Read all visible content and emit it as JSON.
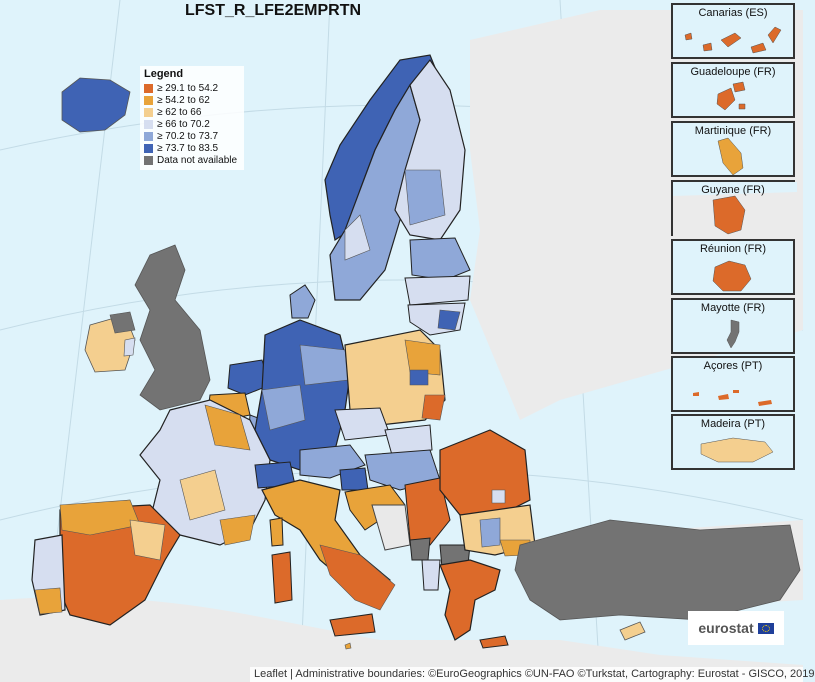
{
  "title": "LFST_R_LFE2EMPRTN",
  "legend": {
    "title": "Legend",
    "items": [
      {
        "label": "≥ 29.1 to 54.2",
        "color": "#dc6a2a"
      },
      {
        "label": "≥ 54.2 to 62",
        "color": "#e8a33a"
      },
      {
        "label": "≥ 62 to 66",
        "color": "#f4cf8f"
      },
      {
        "label": "≥ 66 to 70.2",
        "color": "#d6def0"
      },
      {
        "label": "≥ 70.2 to 73.7",
        "color": "#8fa8d8"
      },
      {
        "label": "≥ 73.7 to 83.5",
        "color": "#3f63b4"
      },
      {
        "label": "Data not available",
        "color": "#737373"
      }
    ]
  },
  "insets": [
    {
      "label": "Canarias (ES)",
      "class": "1"
    },
    {
      "label": "Guadeloupe (FR)",
      "class": "1"
    },
    {
      "label": "Martinique (FR)",
      "class": "2"
    },
    {
      "label": "Guyane (FR)",
      "class": "1"
    },
    {
      "label": "Réunion (FR)",
      "class": "1"
    },
    {
      "label": "Mayotte (FR)",
      "class": "na"
    },
    {
      "label": "Açores (PT)",
      "class": "1"
    },
    {
      "label": "Madeira (PT)",
      "class": "3"
    }
  ],
  "logo": {
    "text": "eurostat"
  },
  "attribution": "Leaflet | Administrative boundaries: ©EuroGeographics ©UN-FAO ©Turkstat, Cartography: Eurostat - GISCO, 2019"
}
